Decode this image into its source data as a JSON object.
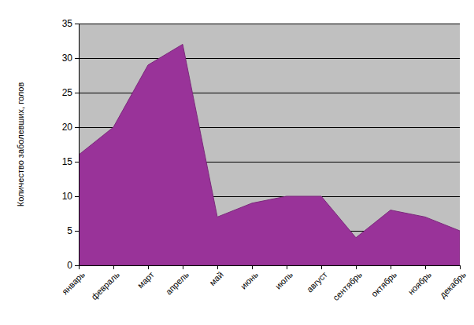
{
  "chart_data": {
    "type": "area",
    "y_label": "Количество заболевших, голов",
    "categories": [
      "январь",
      "февраль",
      "март",
      "апрель",
      "май",
      "июнь",
      "июль",
      "август",
      "сентябрь",
      "октябрь",
      "ноябрь",
      "декабрь"
    ],
    "values": [
      16,
      20,
      29,
      32,
      7,
      9,
      10,
      10,
      4,
      8,
      7,
      5
    ],
    "color": "#993399",
    "ylim": [
      0,
      35
    ],
    "yticks": [
      0,
      5,
      10,
      15,
      20,
      25,
      30,
      35
    ],
    "grid": true
  }
}
